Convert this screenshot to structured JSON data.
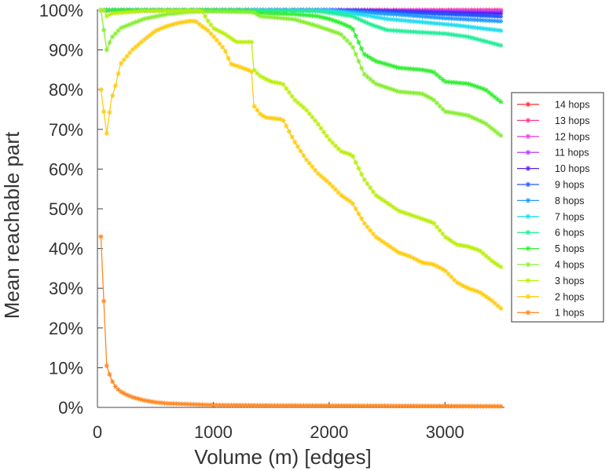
{
  "chart_data": {
    "type": "line",
    "title": "",
    "xlabel": "Volume (m) [edges]",
    "ylabel": "Mean reachable part",
    "xlim": [
      0,
      3500
    ],
    "ylim": [
      0,
      100
    ],
    "x_ticks": [
      0,
      1000,
      2000,
      3000
    ],
    "x_tick_labels": [
      "0",
      "1000",
      "2000",
      "3000"
    ],
    "y_ticks": [
      0,
      10,
      20,
      30,
      40,
      50,
      60,
      70,
      80,
      90,
      100
    ],
    "y_tick_labels": [
      "0%",
      "10%",
      "20%",
      "30%",
      "40%",
      "50%",
      "60%",
      "70%",
      "80%",
      "90%",
      "100%"
    ],
    "grid": false,
    "legend_position": "right",
    "series": [
      {
        "name": "14 hops",
        "color": "#ff2a2a",
        "points": [
          [
            30,
            100
          ],
          [
            1000,
            100
          ],
          [
            2000,
            100
          ],
          [
            2300,
            100
          ],
          [
            3000,
            100
          ],
          [
            3500,
            100
          ]
        ]
      },
      {
        "name": "13 hops",
        "color": "#ff3a8a",
        "points": [
          [
            30,
            100
          ],
          [
            1000,
            100
          ],
          [
            2000,
            100
          ],
          [
            2400,
            100
          ],
          [
            3000,
            100
          ],
          [
            3500,
            100
          ]
        ]
      },
      {
        "name": "12 hops",
        "color": "#ee44dd",
        "points": [
          [
            30,
            100
          ],
          [
            1000,
            100
          ],
          [
            2000,
            100
          ],
          [
            2400,
            100
          ],
          [
            3000,
            99.9
          ],
          [
            3500,
            99.8
          ]
        ]
      },
      {
        "name": "11 hops",
        "color": "#bb44ff",
        "points": [
          [
            30,
            100
          ],
          [
            1000,
            100
          ],
          [
            2000,
            100
          ],
          [
            2400,
            99.9
          ],
          [
            3000,
            99.7
          ],
          [
            3500,
            99.5
          ]
        ]
      },
      {
        "name": "10 hops",
        "color": "#5522ee",
        "points": [
          [
            30,
            100
          ],
          [
            1000,
            100
          ],
          [
            2000,
            100
          ],
          [
            2300,
            99.9
          ],
          [
            2600,
            99.7
          ],
          [
            3000,
            99.4
          ],
          [
            3500,
            99.1
          ]
        ]
      },
      {
        "name": "9 hops",
        "color": "#2255ff",
        "points": [
          [
            30,
            100
          ],
          [
            1000,
            100
          ],
          [
            2000,
            100
          ],
          [
            2300,
            99.8
          ],
          [
            2600,
            99.4
          ],
          [
            3000,
            99.0
          ],
          [
            3500,
            98.4
          ]
        ]
      },
      {
        "name": "8 hops",
        "color": "#2299ff",
        "points": [
          [
            30,
            100
          ],
          [
            1000,
            100
          ],
          [
            2000,
            100
          ],
          [
            2300,
            99.4
          ],
          [
            2600,
            98.9
          ],
          [
            3000,
            98.0
          ],
          [
            3500,
            97.2
          ]
        ]
      },
      {
        "name": "7 hops",
        "color": "#22ddee",
        "points": [
          [
            30,
            100
          ],
          [
            1000,
            100
          ],
          [
            2000,
            99.9
          ],
          [
            2300,
            98.8
          ],
          [
            2500,
            97.8
          ],
          [
            2800,
            97.0
          ],
          [
            3100,
            96.2
          ],
          [
            3500,
            94.8
          ]
        ]
      },
      {
        "name": "6 hops",
        "color": "#22ee99",
        "points": [
          [
            30,
            100
          ],
          [
            1000,
            100
          ],
          [
            1900,
            99.8
          ],
          [
            2200,
            98.5
          ],
          [
            2350,
            96.5
          ],
          [
            2500,
            95.0
          ],
          [
            2700,
            94.6
          ],
          [
            3000,
            94.1
          ],
          [
            3200,
            93.3
          ],
          [
            3500,
            91.0
          ]
        ]
      },
      {
        "name": "5 hops",
        "color": "#33ee33",
        "points": [
          [
            30,
            100
          ],
          [
            1000,
            100
          ],
          [
            1300,
            99.8
          ],
          [
            1400,
            99.3
          ],
          [
            1700,
            99.0
          ],
          [
            1900,
            98.5
          ],
          [
            2000,
            97.8
          ],
          [
            2100,
            96.8
          ],
          [
            2200,
            95.5
          ],
          [
            2300,
            89
          ],
          [
            2400,
            87.2
          ],
          [
            2600,
            85.5
          ],
          [
            2800,
            85.0
          ],
          [
            2900,
            84.5
          ],
          [
            3000,
            82.0
          ],
          [
            3200,
            81.5
          ],
          [
            3350,
            80.0
          ],
          [
            3500,
            76.5
          ]
        ]
      },
      {
        "name": "4 hops",
        "color": "#88ee33",
        "points": [
          [
            30,
            100
          ],
          [
            80,
            90
          ],
          [
            120,
            93
          ],
          [
            200,
            95.5
          ],
          [
            400,
            97.8
          ],
          [
            600,
            99.0
          ],
          [
            800,
            99.6
          ],
          [
            1000,
            99.7
          ],
          [
            1350,
            99.5
          ],
          [
            1400,
            98.5
          ],
          [
            1700,
            97.7
          ],
          [
            1900,
            96.0
          ],
          [
            2100,
            94.0
          ],
          [
            2200,
            91.0
          ],
          [
            2300,
            84.0
          ],
          [
            2400,
            81.5
          ],
          [
            2600,
            79.5
          ],
          [
            2800,
            79.0
          ],
          [
            2900,
            77.5
          ],
          [
            3000,
            74.5
          ],
          [
            3200,
            73.5
          ],
          [
            3350,
            71.5
          ],
          [
            3500,
            68.0
          ]
        ]
      },
      {
        "name": "3 hops",
        "color": "#bbee11",
        "points": [
          [
            30,
            100
          ],
          [
            60,
            100
          ],
          [
            80,
            98.5
          ],
          [
            120,
            99.2
          ],
          [
            400,
            99.8
          ],
          [
            900,
            99.9
          ],
          [
            950,
            97.5
          ],
          [
            1000,
            95.5
          ],
          [
            1100,
            94.0
          ],
          [
            1200,
            92.0
          ],
          [
            1330,
            92.0
          ],
          [
            1350,
            85.0
          ],
          [
            1400,
            83.5
          ],
          [
            1500,
            82.0
          ],
          [
            1600,
            81.5
          ],
          [
            1700,
            77.5
          ],
          [
            1800,
            75.0
          ],
          [
            1900,
            71.5
          ],
          [
            2000,
            67.5
          ],
          [
            2100,
            64.5
          ],
          [
            2200,
            63.5
          ],
          [
            2300,
            57.5
          ],
          [
            2400,
            53.5
          ],
          [
            2500,
            51.5
          ],
          [
            2600,
            49.5
          ],
          [
            2700,
            48.5
          ],
          [
            2800,
            47.5
          ],
          [
            2900,
            46.5
          ],
          [
            3000,
            43.0
          ],
          [
            3100,
            41.0
          ],
          [
            3200,
            40.5
          ],
          [
            3300,
            39.5
          ],
          [
            3400,
            37.0
          ],
          [
            3500,
            35.0
          ]
        ]
      },
      {
        "name": "2 hops",
        "color": "#ffcc11",
        "points": [
          [
            30,
            80
          ],
          [
            80,
            69
          ],
          [
            120,
            77.5
          ],
          [
            160,
            81.5
          ],
          [
            200,
            86.5
          ],
          [
            300,
            90
          ],
          [
            400,
            92.5
          ],
          [
            500,
            94.8
          ],
          [
            600,
            96
          ],
          [
            700,
            96.8
          ],
          [
            800,
            97.3
          ],
          [
            850,
            97.2
          ],
          [
            900,
            96.0
          ],
          [
            950,
            95.0
          ],
          [
            1000,
            93.5
          ],
          [
            1100,
            90.0
          ],
          [
            1150,
            86.5
          ],
          [
            1300,
            85.0
          ],
          [
            1330,
            84.5
          ],
          [
            1350,
            76.0
          ],
          [
            1400,
            74.0
          ],
          [
            1450,
            73.0
          ],
          [
            1600,
            72.5
          ],
          [
            1700,
            67.0
          ],
          [
            1800,
            62.5
          ],
          [
            1900,
            59.0
          ],
          [
            2000,
            56.5
          ],
          [
            2100,
            53.5
          ],
          [
            2200,
            51.5
          ],
          [
            2300,
            46.5
          ],
          [
            2400,
            43.0
          ],
          [
            2500,
            41.0
          ],
          [
            2600,
            39.0
          ],
          [
            2700,
            38.0
          ],
          [
            2800,
            36.5
          ],
          [
            2900,
            36.0
          ],
          [
            3000,
            34.5
          ],
          [
            3100,
            31.5
          ],
          [
            3200,
            30.0
          ],
          [
            3300,
            29.0
          ],
          [
            3400,
            27.0
          ],
          [
            3500,
            24.5
          ]
        ]
      },
      {
        "name": "1 hops",
        "color": "#ff8822",
        "points": [
          [
            30,
            43
          ],
          [
            80,
            10.5
          ],
          [
            120,
            7
          ],
          [
            160,
            5
          ],
          [
            200,
            4
          ],
          [
            250,
            3.2
          ],
          [
            300,
            2.6
          ],
          [
            350,
            2.2
          ],
          [
            400,
            1.8
          ],
          [
            500,
            1.3
          ],
          [
            600,
            1.0
          ],
          [
            800,
            0.8
          ],
          [
            1000,
            0.6
          ],
          [
            1500,
            0.5
          ],
          [
            2000,
            0.45
          ],
          [
            2500,
            0.4
          ],
          [
            3000,
            0.35
          ],
          [
            3500,
            0.3
          ]
        ]
      }
    ]
  }
}
